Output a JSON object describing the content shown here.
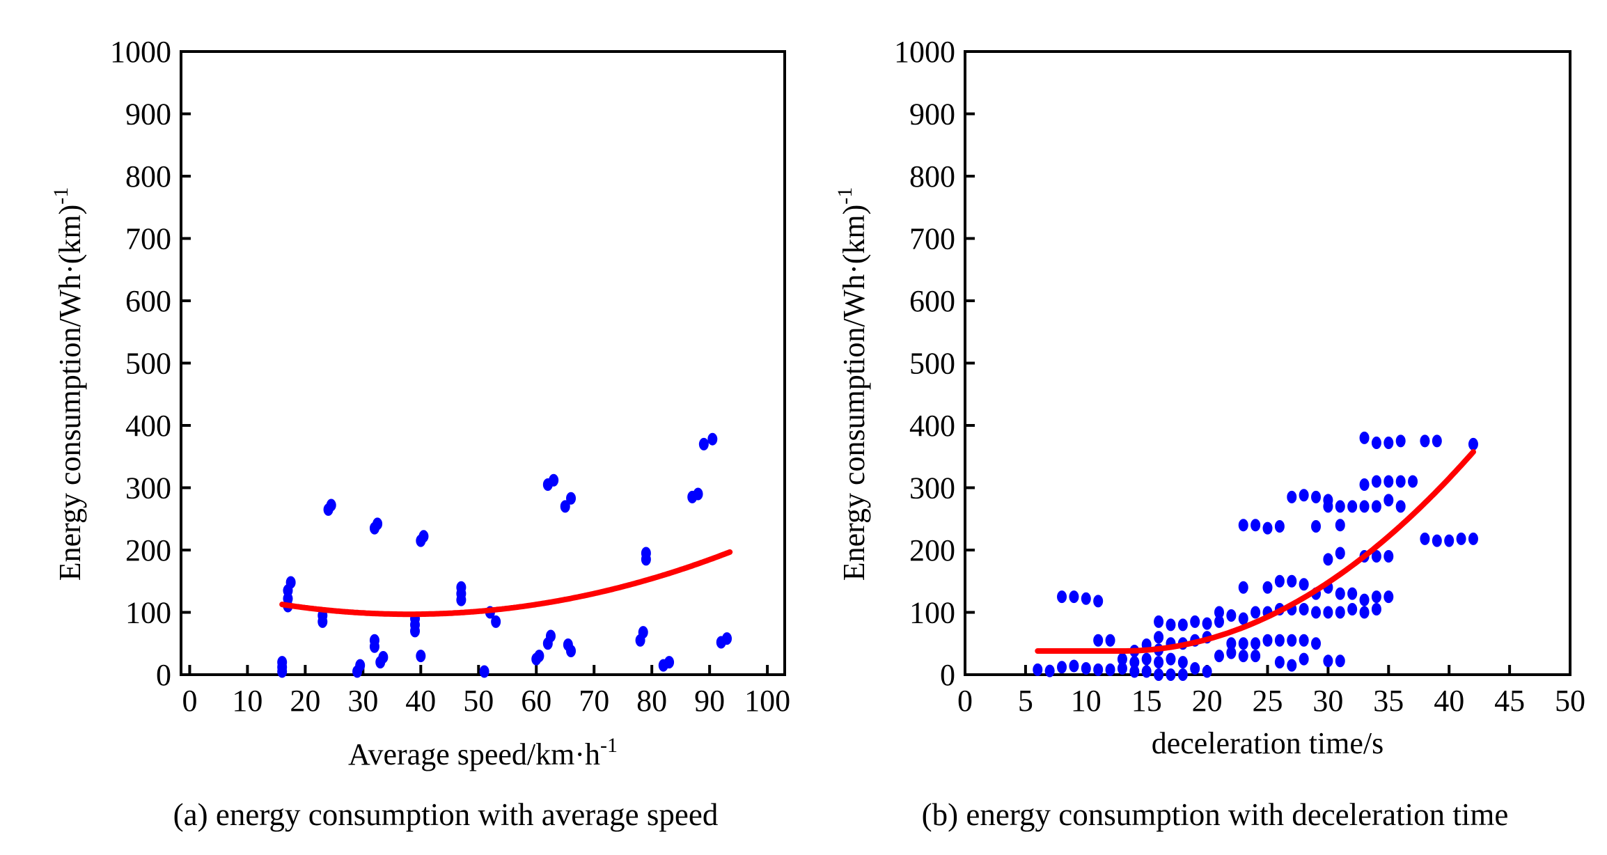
{
  "colors": {
    "points": "#0000ff",
    "fit": "#ff0000",
    "axis": "#000000"
  },
  "chart_data": [
    {
      "type": "scatter",
      "caption": "(a) energy consumption with average speed",
      "xlabel": "Average speed/km·h",
      "xlabel_sup": "-1",
      "ylabel": "Energy consumption/Wh·(km)",
      "ylabel_sup": "-1",
      "xlim": [
        -1.5,
        103
      ],
      "ylim": [
        0,
        1000
      ],
      "xticks": [
        0,
        10,
        20,
        30,
        40,
        50,
        60,
        70,
        80,
        90,
        100
      ],
      "yticks": [
        0,
        100,
        200,
        300,
        400,
        500,
        600,
        700,
        800,
        900,
        1000
      ],
      "points": [
        [
          16,
          5
        ],
        [
          16,
          12
        ],
        [
          16,
          20
        ],
        [
          17,
          110
        ],
        [
          17,
          122
        ],
        [
          17,
          135
        ],
        [
          17.5,
          148
        ],
        [
          23,
          85
        ],
        [
          23,
          95
        ],
        [
          24,
          265
        ],
        [
          24.5,
          272
        ],
        [
          29,
          5
        ],
        [
          29.5,
          15
        ],
        [
          32,
          235
        ],
        [
          32.5,
          242
        ],
        [
          32,
          45
        ],
        [
          32,
          55
        ],
        [
          33,
          20
        ],
        [
          33.5,
          28
        ],
        [
          39,
          70
        ],
        [
          39,
          80
        ],
        [
          39,
          90
        ],
        [
          40,
          215
        ],
        [
          40.5,
          222
        ],
        [
          40,
          30
        ],
        [
          47,
          120
        ],
        [
          47,
          130
        ],
        [
          47,
          140
        ],
        [
          51,
          5
        ],
        [
          52,
          100
        ],
        [
          53,
          85
        ],
        [
          60,
          25
        ],
        [
          60.5,
          30
        ],
        [
          62,
          305
        ],
        [
          63,
          312
        ],
        [
          62,
          50
        ],
        [
          62.5,
          62
        ],
        [
          65,
          270
        ],
        [
          66,
          283
        ],
        [
          66,
          38
        ],
        [
          65.5,
          48
        ],
        [
          78,
          55
        ],
        [
          78.5,
          68
        ],
        [
          79,
          185
        ],
        [
          79,
          195
        ],
        [
          82,
          15
        ],
        [
          83,
          20
        ],
        [
          87,
          285
        ],
        [
          88,
          290
        ],
        [
          89,
          370
        ],
        [
          90.5,
          378
        ],
        [
          92,
          52
        ],
        [
          93,
          58
        ]
      ],
      "fit": {
        "type": "quadratic",
        "vertex_x": 38,
        "vertex_y": 97,
        "a": 0.0324,
        "x_range": [
          16,
          93.5
        ]
      }
    },
    {
      "type": "scatter",
      "caption": "(b) energy consumption with deceleration time",
      "xlabel": "deceleration time/s",
      "ylabel": "Energy consumption/Wh·(km)",
      "ylabel_sup": "-1",
      "xlim": [
        0,
        50
      ],
      "ylim": [
        0,
        1000
      ],
      "xticks": [
        0,
        5,
        10,
        15,
        20,
        25,
        30,
        35,
        40,
        45,
        50
      ],
      "yticks": [
        0,
        100,
        200,
        300,
        400,
        500,
        600,
        700,
        800,
        900,
        1000
      ],
      "points": [
        [
          6,
          8
        ],
        [
          7,
          6
        ],
        [
          8,
          12
        ],
        [
          8,
          125
        ],
        [
          9,
          14
        ],
        [
          9,
          125
        ],
        [
          10,
          10
        ],
        [
          10,
          122
        ],
        [
          11,
          8
        ],
        [
          11,
          118
        ],
        [
          11,
          55
        ],
        [
          12,
          55
        ],
        [
          12,
          8
        ],
        [
          13,
          10
        ],
        [
          13,
          25
        ],
        [
          14,
          5
        ],
        [
          14,
          20
        ],
        [
          14,
          38
        ],
        [
          15,
          5
        ],
        [
          15,
          25
        ],
        [
          15,
          48
        ],
        [
          16,
          0
        ],
        [
          16,
          20
        ],
        [
          16,
          40
        ],
        [
          16,
          60
        ],
        [
          16,
          85
        ],
        [
          17,
          0
        ],
        [
          17,
          25
        ],
        [
          17,
          50
        ],
        [
          17,
          80
        ],
        [
          18,
          0
        ],
        [
          18,
          20
        ],
        [
          18,
          50
        ],
        [
          18,
          80
        ],
        [
          19,
          10
        ],
        [
          19,
          55
        ],
        [
          19,
          85
        ],
        [
          20,
          5
        ],
        [
          20,
          60
        ],
        [
          20,
          82
        ],
        [
          21,
          30
        ],
        [
          21,
          85
        ],
        [
          21,
          100
        ],
        [
          22,
          35
        ],
        [
          22,
          50
        ],
        [
          22,
          95
        ],
        [
          23,
          30
        ],
        [
          23,
          50
        ],
        [
          23,
          90
        ],
        [
          23,
          140
        ],
        [
          23,
          240
        ],
        [
          24,
          30
        ],
        [
          24,
          50
        ],
        [
          24,
          100
        ],
        [
          24,
          240
        ],
        [
          25,
          55
        ],
        [
          25,
          100
        ],
        [
          25,
          140
        ],
        [
          25,
          235
        ],
        [
          26,
          20
        ],
        [
          26,
          55
        ],
        [
          26,
          105
        ],
        [
          26,
          150
        ],
        [
          26,
          238
        ],
        [
          27,
          15
        ],
        [
          27,
          55
        ],
        [
          27,
          105
        ],
        [
          27,
          150
        ],
        [
          27,
          285
        ],
        [
          28,
          25
        ],
        [
          28,
          55
        ],
        [
          28,
          105
        ],
        [
          28,
          145
        ],
        [
          28,
          288
        ],
        [
          29,
          50
        ],
        [
          29,
          100
        ],
        [
          29,
          130
        ],
        [
          29,
          238
        ],
        [
          29,
          285
        ],
        [
          30,
          22
        ],
        [
          30,
          100
        ],
        [
          30,
          140
        ],
        [
          30,
          185
        ],
        [
          30,
          270
        ],
        [
          30,
          280
        ],
        [
          31,
          22
        ],
        [
          31,
          100
        ],
        [
          31,
          130
        ],
        [
          31,
          195
        ],
        [
          31,
          240
        ],
        [
          31,
          270
        ],
        [
          32,
          105
        ],
        [
          32,
          130
        ],
        [
          32,
          270
        ],
        [
          33,
          100
        ],
        [
          33,
          120
        ],
        [
          33,
          190
        ],
        [
          33,
          270
        ],
        [
          33,
          305
        ],
        [
          33,
          380
        ],
        [
          34,
          105
        ],
        [
          34,
          125
        ],
        [
          34,
          190
        ],
        [
          34,
          270
        ],
        [
          34,
          310
        ],
        [
          34,
          372
        ],
        [
          35,
          125
        ],
        [
          35,
          190
        ],
        [
          35,
          280
        ],
        [
          35,
          310
        ],
        [
          35,
          372
        ],
        [
          36,
          270
        ],
        [
          36,
          310
        ],
        [
          36,
          375
        ],
        [
          37,
          310
        ],
        [
          38,
          218
        ],
        [
          38,
          375
        ],
        [
          39,
          215
        ],
        [
          39,
          375
        ],
        [
          40,
          215
        ],
        [
          41,
          218
        ],
        [
          42,
          218
        ],
        [
          42,
          370
        ]
      ],
      "fit": {
        "type": "piecewise-quadratic",
        "flat_y": 38,
        "start_x": 13,
        "a": 0.38,
        "x_range": [
          6,
          42
        ]
      }
    }
  ]
}
